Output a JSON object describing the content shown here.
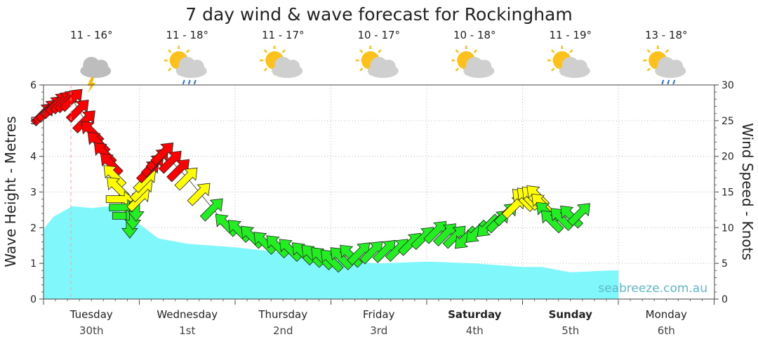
{
  "chart_data": {
    "type": "line",
    "title": "7 day wind & wave forecast for Rockingham",
    "ylabel_left": "Wave Height - Metres",
    "ylabel_right": "Wind Speed - Knots",
    "ylim_left": [
      0,
      6
    ],
    "ylim_right": [
      0,
      30
    ],
    "yticks_left": [
      "0",
      "1",
      "2",
      "3",
      "4",
      "5",
      "6"
    ],
    "yticks_right": [
      "0",
      "5",
      "10",
      "15",
      "20",
      "25",
      "30"
    ],
    "grid": true,
    "watermark": "seabreeze.com.au",
    "days": [
      {
        "name": "Tuesday",
        "date": "30th",
        "temp": "11 - 16°",
        "icon": "storm-cloud-icon",
        "bold": false
      },
      {
        "name": "Wednesday",
        "date": "1st",
        "temp": "11 - 18°",
        "icon": "sun-cloud-rain-icon",
        "bold": false
      },
      {
        "name": "Thursday",
        "date": "2nd",
        "temp": "11 - 17°",
        "icon": "sun-cloud-icon",
        "bold": false
      },
      {
        "name": "Friday",
        "date": "3rd",
        "temp": "10 - 17°",
        "icon": "sun-cloud-icon",
        "bold": false
      },
      {
        "name": "Saturday",
        "date": "4th",
        "temp": "10 - 18°",
        "icon": "sun-cloud-icon",
        "bold": true
      },
      {
        "name": "Sunday",
        "date": "5th",
        "temp": "11 - 19°",
        "icon": "sun-cloud-icon",
        "bold": true
      },
      {
        "name": "Monday",
        "date": "6th",
        "temp": "13 - 18°",
        "icon": "sun-cloud-rain-icon",
        "bold": false
      }
    ],
    "series": [
      {
        "name": "Wave Height",
        "color": "#7ff7fb",
        "x": [
          0,
          0.1,
          0.3,
          0.5,
          0.7,
          0.9,
          1.2,
          1.5,
          2.0,
          2.5,
          3.0,
          3.5,
          4.0,
          4.5,
          5.0,
          5.2,
          5.5,
          5.9,
          6.0
        ],
        "values": [
          1.95,
          2.3,
          2.6,
          2.55,
          2.6,
          2.3,
          1.7,
          1.55,
          1.45,
          1.3,
          1.1,
          1.0,
          1.05,
          1.0,
          0.9,
          0.9,
          0.75,
          0.8,
          0.8
        ]
      },
      {
        "name": "Wind Speed",
        "x": [
          0,
          0.15,
          0.3,
          0.5,
          0.7,
          0.8,
          0.9,
          1.0,
          1.1,
          1.25,
          1.5,
          1.9,
          2.3,
          2.7,
          3.0,
          3.3,
          3.7,
          4.1,
          4.4,
          4.75,
          5.0,
          5.15,
          5.3,
          5.6
        ],
        "values": [
          26,
          27.5,
          28,
          23.5,
          19,
          14,
          10.5,
          14,
          18,
          20.5,
          17,
          10.5,
          8,
          6.5,
          5.5,
          6.5,
          7,
          9.5,
          8.5,
          11,
          14,
          14.5,
          11,
          12
        ],
        "dirs_deg": [
          45,
          45,
          45,
          135,
          135,
          0,
          270,
          45,
          45,
          45,
          45,
          135,
          135,
          135,
          135,
          45,
          45,
          45,
          225,
          45,
          135,
          135,
          135,
          45
        ]
      }
    ],
    "wind_colors": {
      "strong": "#ff0000",
      "moderate": "#ffff00",
      "light": "#22ee22"
    }
  }
}
